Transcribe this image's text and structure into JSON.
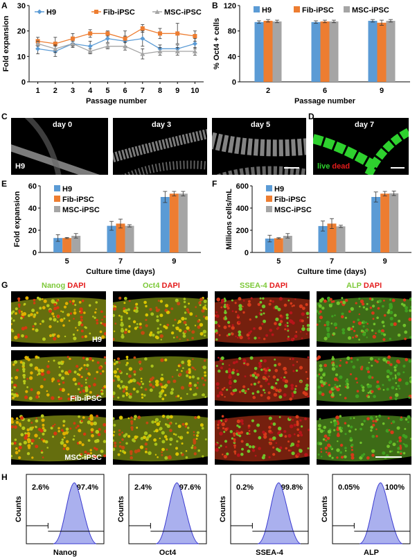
{
  "panel_letters": {
    "A": "A",
    "B": "B",
    "C": "C",
    "D": "D",
    "E": "E",
    "F": "F",
    "G": "G",
    "H": "H"
  },
  "colors": {
    "h9": "#5b9bd5",
    "fib": "#ed7d31",
    "msc": "#a5a5a5"
  },
  "chart_data": [
    {
      "id": "A",
      "type": "line",
      "xlabel": "Passage number",
      "ylabel": "Fold expansion",
      "x": [
        1,
        2,
        3,
        4,
        5,
        6,
        7,
        8,
        9,
        10
      ],
      "ylim": [
        0,
        30
      ],
      "yticks": [
        0,
        10,
        20,
        30
      ],
      "legend": "top",
      "series": [
        {
          "name": "H9",
          "values": [
            13,
            12,
            15,
            14,
            17,
            16,
            17,
            13,
            13,
            15
          ],
          "err": [
            2,
            2,
            1.5,
            2,
            1.5,
            2,
            3,
            1.5,
            1.5,
            2
          ]
        },
        {
          "name": "Fib-iPSC",
          "values": [
            16,
            15,
            17,
            19,
            19,
            17,
            21,
            19,
            19,
            18
          ],
          "err": [
            1.5,
            2.5,
            2,
            1.5,
            1,
            3,
            1.5,
            2,
            4,
            2
          ]
        },
        {
          "name": "MSC-iPSC",
          "values": [
            15,
            13,
            15,
            12,
            14,
            14,
            11,
            12,
            12,
            12
          ],
          "err": [
            1,
            1.5,
            1,
            1,
            1,
            1.5,
            2,
            1.5,
            1.5,
            1.5
          ]
        }
      ]
    },
    {
      "id": "B",
      "type": "bar",
      "xlabel": "Passage number",
      "ylabel": "% Oct4 + cells",
      "categories": [
        "2",
        "6",
        "9"
      ],
      "ylim": [
        0,
        120
      ],
      "yticks": [
        0,
        40,
        80,
        120
      ],
      "legend": "top",
      "series": [
        {
          "name": "H9",
          "values": [
            94,
            94,
            96
          ],
          "err": [
            2,
            2,
            2
          ]
        },
        {
          "name": "Fib-iPSC",
          "values": [
            96,
            95,
            93
          ],
          "err": [
            2,
            2,
            4
          ]
        },
        {
          "name": "MSC-iPSC",
          "values": [
            95,
            95,
            96
          ],
          "err": [
            2,
            2,
            2
          ]
        }
      ]
    },
    {
      "id": "E",
      "type": "bar",
      "xlabel": "Culture time (days)",
      "ylabel": "Fold expansion",
      "categories": [
        "5",
        "7",
        "9"
      ],
      "ylim": [
        0,
        60
      ],
      "yticks": [
        0,
        20,
        40,
        60
      ],
      "legend": "top-left",
      "series": [
        {
          "name": "H9",
          "values": [
            13,
            24,
            50
          ],
          "err": [
            3,
            4,
            5
          ]
        },
        {
          "name": "Fib-iPSC",
          "values": [
            13,
            26,
            53
          ],
          "err": [
            0.5,
            4,
            2
          ]
        },
        {
          "name": "MSC-iPSC",
          "values": [
            15,
            24,
            53
          ],
          "err": [
            2,
            1,
            2
          ]
        }
      ]
    },
    {
      "id": "F",
      "type": "bar",
      "xlabel": "Culture time (days)",
      "ylabel": "Millions cells/mL",
      "categories": [
        "5",
        "7",
        "9"
      ],
      "ylim": [
        0,
        600
      ],
      "yticks": [
        0,
        200,
        400,
        600
      ],
      "legend": "top-left",
      "series": [
        {
          "name": "H9",
          "values": [
            125,
            238,
            500
          ],
          "err": [
            30,
            45,
            45
          ]
        },
        {
          "name": "Fib-iPSC",
          "values": [
            128,
            260,
            530
          ],
          "err": [
            5,
            45,
            20
          ]
        },
        {
          "name": "MSC-iPSC",
          "values": [
            150,
            235,
            533
          ],
          "err": [
            20,
            10,
            20
          ]
        }
      ]
    },
    {
      "id": "H",
      "type": "histogram",
      "ylabel": "Counts",
      "plots": [
        {
          "marker": "Nanog",
          "neg": "2.6%",
          "pos": "97.4%"
        },
        {
          "marker": "Oct4",
          "neg": "2.4%",
          "pos": "97.6%"
        },
        {
          "marker": "SSEA-4",
          "neg": "0.2%",
          "pos": "99.8%"
        },
        {
          "marker": "ALP",
          "neg": "0.05%",
          "pos": "100%"
        }
      ]
    }
  ],
  "panel_C": {
    "labels": [
      "day 0",
      "day 3",
      "day 5"
    ],
    "cell_line": "H9"
  },
  "panel_D": {
    "label": "day 7",
    "live": "live",
    "dead": "dead"
  },
  "panel_G": {
    "stains": [
      {
        "marker": "Nanog",
        "dapi": "DAPI"
      },
      {
        "marker": "Oct4",
        "dapi": "DAPI"
      },
      {
        "marker": "SSEA-4",
        "dapi": "DAPI"
      },
      {
        "marker": "ALP",
        "dapi": "DAPI"
      }
    ],
    "rows": [
      "H9",
      "Fib-iPSC",
      "MSC-iPSC"
    ]
  }
}
